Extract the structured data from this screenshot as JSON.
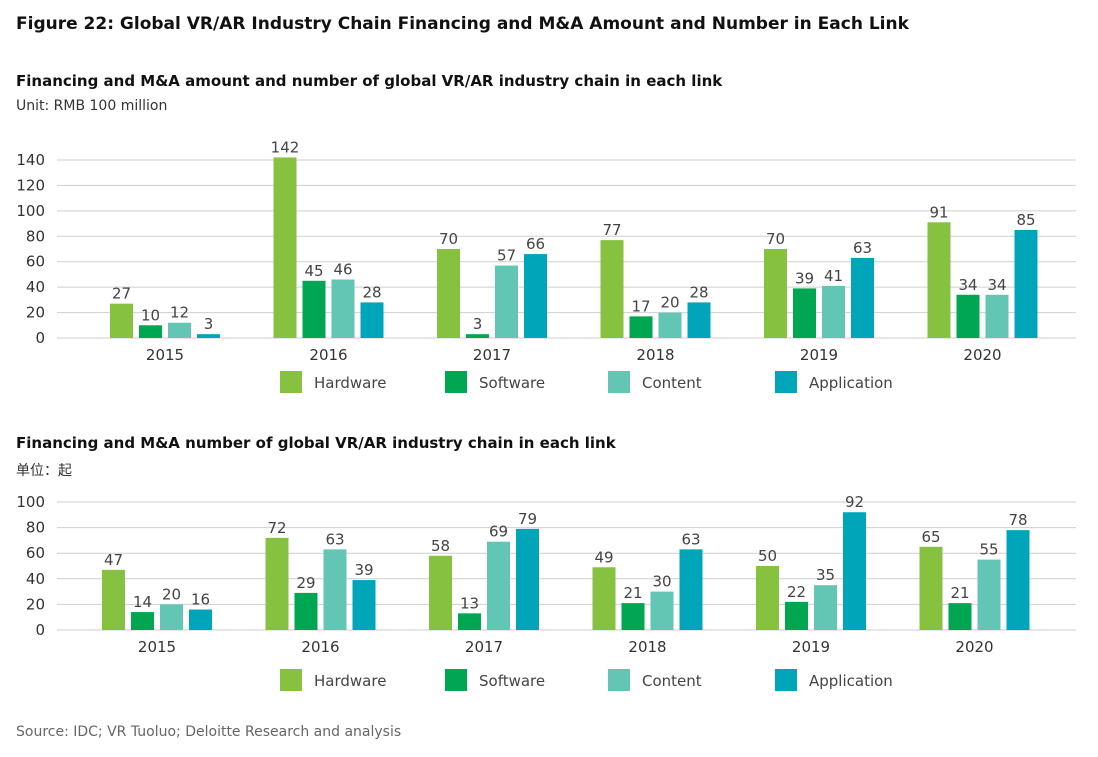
{
  "figure_title": "Figure 22: Global VR/AR Industry Chain Financing and M&A Amount and Number in Each Link",
  "source": "Source: IDC; VR Tuoluo; Deloitte Research and analysis",
  "colors": {
    "Hardware": "#86c13f",
    "Software": "#00a651",
    "Content": "#63c6b4",
    "Application": "#00a5b9"
  },
  "chart_data": [
    {
      "type": "bar",
      "title": "Financing and M&A amount and number of global VR/AR industry chain in each link",
      "unit": "Unit: RMB 100 million",
      "categories": [
        "2015",
        "2016",
        "2017",
        "2018",
        "2019",
        "2020"
      ],
      "ylim": [
        0,
        140
      ],
      "yticks": [
        0,
        20,
        40,
        60,
        80,
        100,
        120,
        140
      ],
      "grid": true,
      "legend": "bottom",
      "series": [
        {
          "name": "Hardware",
          "values": [
            27,
            142,
            70,
            77,
            70,
            91
          ]
        },
        {
          "name": "Software",
          "values": [
            10,
            45,
            3,
            17,
            39,
            34
          ]
        },
        {
          "name": "Content",
          "values": [
            12,
            46,
            57,
            20,
            41,
            34
          ]
        },
        {
          "name": "Application",
          "values": [
            3,
            28,
            66,
            28,
            63,
            85
          ]
        }
      ]
    },
    {
      "type": "bar",
      "title": "Financing and M&A number of global VR/AR industry chain in each link",
      "unit": "单位：起",
      "categories": [
        "2015",
        "2016",
        "2017",
        "2018",
        "2019",
        "2020"
      ],
      "ylim": [
        0,
        100
      ],
      "yticks": [
        0,
        20,
        40,
        60,
        80,
        100
      ],
      "grid": true,
      "legend": "bottom",
      "series": [
        {
          "name": "Hardware",
          "values": [
            47,
            72,
            58,
            49,
            50,
            65
          ]
        },
        {
          "name": "Software",
          "values": [
            14,
            29,
            13,
            21,
            22,
            21
          ]
        },
        {
          "name": "Content",
          "values": [
            20,
            63,
            69,
            30,
            35,
            55
          ]
        },
        {
          "name": "Application",
          "values": [
            16,
            39,
            79,
            63,
            92,
            78
          ]
        }
      ]
    }
  ]
}
